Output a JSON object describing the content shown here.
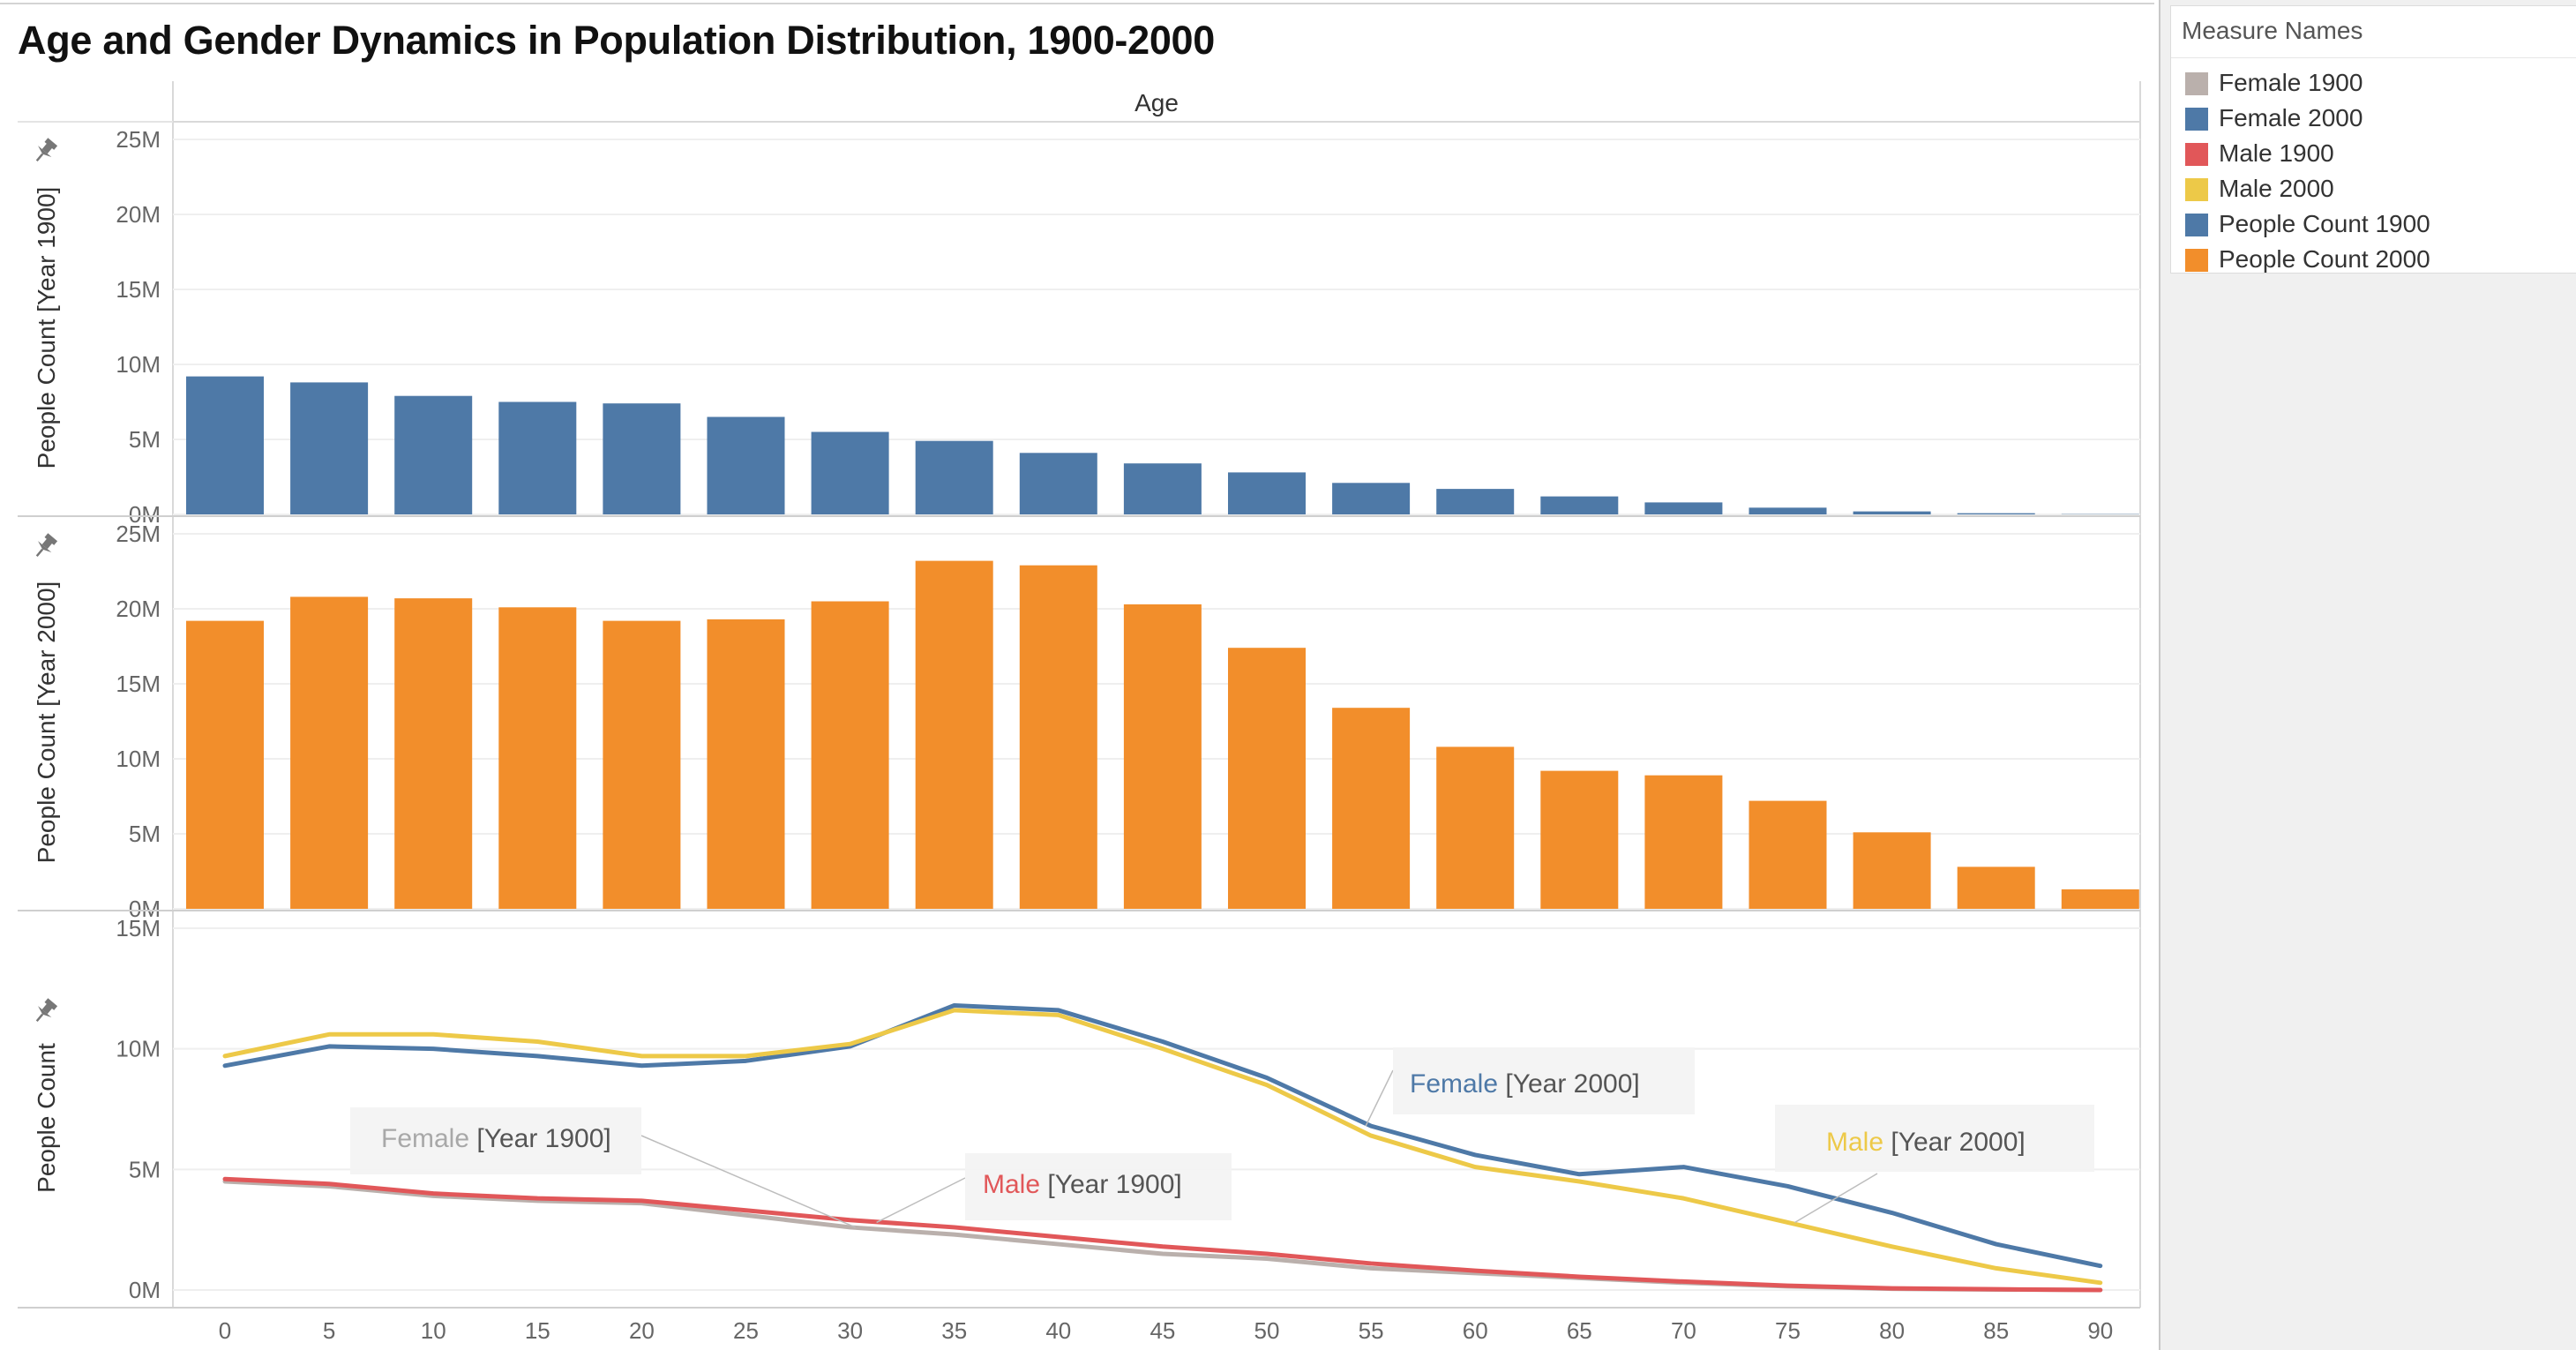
{
  "title": "Age and Gender Dynamics in Population Distribution, 1900-2000",
  "legend": {
    "title": "Measure Names",
    "items": [
      {
        "label": "Female 1900",
        "color": "#bab0ac"
      },
      {
        "label": "Female 2000",
        "color": "#4e79a7"
      },
      {
        "label": "Male 1900",
        "color": "#e15759"
      },
      {
        "label": "Male 2000",
        "color": "#edc948"
      },
      {
        "label": "People Count 1900",
        "color": "#4e79a7"
      },
      {
        "label": "People Count 2000",
        "color": "#f28e2b"
      }
    ]
  },
  "chart_data": [
    {
      "type": "bar",
      "xlabel": "Age",
      "ylabel": "People Count [Year 1900]",
      "categories": [
        0,
        5,
        10,
        15,
        20,
        25,
        30,
        35,
        40,
        45,
        50,
        55,
        60,
        65,
        70,
        75,
        80,
        85,
        90
      ],
      "values": [
        9.2,
        8.8,
        7.9,
        7.5,
        7.4,
        6.5,
        5.5,
        4.9,
        4.1,
        3.4,
        2.8,
        2.1,
        1.7,
        1.2,
        0.8,
        0.45,
        0.2,
        0.08,
        0.02
      ],
      "ylim": [
        0,
        25
      ],
      "yticks": [
        "0M",
        "5M",
        "10M",
        "15M",
        "20M",
        "25M"
      ],
      "unit": "millions",
      "color": "#4e79a7"
    },
    {
      "type": "bar",
      "ylabel": "People Count [Year 2000]",
      "categories": [
        0,
        5,
        10,
        15,
        20,
        25,
        30,
        35,
        40,
        45,
        50,
        55,
        60,
        65,
        70,
        75,
        80,
        85,
        90
      ],
      "values": [
        19.2,
        20.8,
        20.7,
        20.1,
        19.2,
        19.3,
        20.5,
        23.2,
        22.9,
        20.3,
        17.4,
        13.4,
        10.8,
        9.2,
        8.9,
        7.2,
        5.1,
        2.8,
        1.3
      ],
      "ylim": [
        0,
        25
      ],
      "yticks": [
        "0M",
        "5M",
        "10M",
        "15M",
        "20M",
        "25M"
      ],
      "unit": "millions",
      "color": "#f28e2b"
    },
    {
      "type": "line",
      "ylabel": "People Count",
      "x": [
        0,
        5,
        10,
        15,
        20,
        25,
        30,
        35,
        40,
        45,
        50,
        55,
        60,
        65,
        70,
        75,
        80,
        85,
        90
      ],
      "ylim": [
        0,
        15
      ],
      "yticks": [
        "0M",
        "5M",
        "10M",
        "15M"
      ],
      "unit": "millions",
      "series": [
        {
          "name": "Female 1900",
          "color": "#bab0ac",
          "values": [
            4.5,
            4.3,
            3.9,
            3.7,
            3.6,
            3.1,
            2.6,
            2.3,
            1.9,
            1.5,
            1.3,
            0.9,
            0.7,
            0.5,
            0.3,
            0.15,
            0.05,
            0.02,
            0.0
          ]
        },
        {
          "name": "Female 2000",
          "color": "#4e79a7",
          "values": [
            9.3,
            10.1,
            10.0,
            9.7,
            9.3,
            9.5,
            10.1,
            11.8,
            11.6,
            10.3,
            8.8,
            6.8,
            5.6,
            4.8,
            5.1,
            4.3,
            3.2,
            1.9,
            1.0
          ]
        },
        {
          "name": "Male 1900",
          "color": "#e15759",
          "values": [
            4.6,
            4.4,
            4.0,
            3.8,
            3.7,
            3.3,
            2.9,
            2.6,
            2.2,
            1.8,
            1.5,
            1.1,
            0.8,
            0.55,
            0.35,
            0.18,
            0.07,
            0.03,
            0.0
          ]
        },
        {
          "name": "Male 2000",
          "color": "#edc948",
          "values": [
            9.7,
            10.6,
            10.6,
            10.3,
            9.7,
            9.7,
            10.2,
            11.6,
            11.4,
            10.0,
            8.5,
            6.4,
            5.1,
            4.5,
            3.8,
            2.8,
            1.8,
            0.9,
            0.3
          ]
        }
      ],
      "annotations": [
        {
          "colored": "Female",
          "rest": " [Year 1900]",
          "color": "#a8a8a8"
        },
        {
          "colored": "Male",
          "rest": " [Year 1900]",
          "color": "#e15759"
        },
        {
          "colored": "Female",
          "rest": " [Year 2000]",
          "color": "#4e79a7"
        },
        {
          "colored": "Male",
          "rest": " [Year 2000]",
          "color": "#edc948"
        }
      ]
    }
  ]
}
